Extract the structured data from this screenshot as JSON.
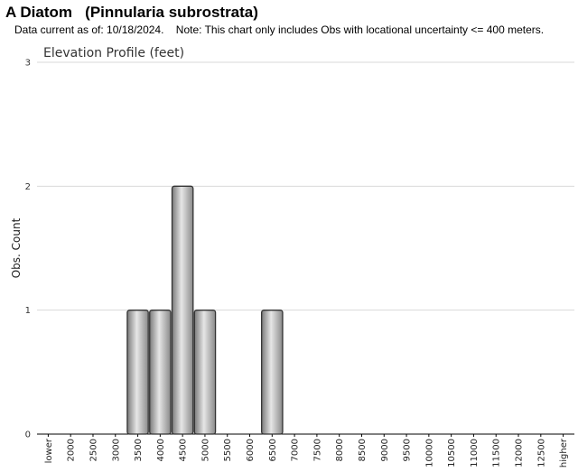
{
  "header": {
    "title": "A Diatom   (Pinnularia subrostrata)",
    "subtitle": "Data current as of: 10/18/2024.    Note: This chart only includes Obs with locational uncertainty <= 400 meters."
  },
  "chart_data": {
    "type": "bar",
    "title": "Elevation Profile (feet)",
    "xlabel": "",
    "ylabel": "Obs. Count",
    "ylim": [
      0,
      3
    ],
    "yticks": [
      "0",
      "1",
      "2",
      "3"
    ],
    "grid": true,
    "categories": [
      "lower",
      "2000",
      "2500",
      "3000",
      "3500",
      "4000",
      "4500",
      "5000",
      "5500",
      "6000",
      "6500",
      "7000",
      "7500",
      "8000",
      "8500",
      "9000",
      "9500",
      "10000",
      "10500",
      "11000",
      "11500",
      "12000",
      "12500",
      "higher"
    ],
    "values": [
      0,
      0,
      0,
      0,
      1,
      1,
      2,
      1,
      0,
      0,
      1,
      0,
      0,
      0,
      0,
      0,
      0,
      0,
      0,
      0,
      0,
      0,
      0,
      0
    ],
    "bar_color": "#a9a9a9",
    "bar_edge_color": "#333333"
  }
}
